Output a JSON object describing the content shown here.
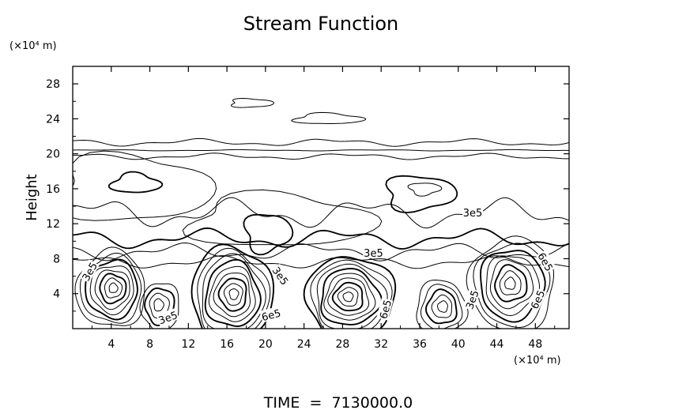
{
  "chart_data": {
    "type": "contour",
    "title": "Stream Function",
    "xlabel": "",
    "ylabel": "Height",
    "x_unit": "(×10⁴ m)",
    "y_unit": "(×10⁴ m)",
    "xlim": [
      0,
      51.5
    ],
    "ylim": [
      0,
      30
    ],
    "xticks": [
      4,
      8,
      12,
      16,
      20,
      24,
      28,
      32,
      36,
      40,
      44,
      48
    ],
    "yticks": [
      4,
      8,
      12,
      16,
      20,
      24,
      28
    ],
    "grid": false,
    "contour_labels": [
      {
        "text": "3e5",
        "x": 1.8,
        "y": 6.5,
        "angle": -60
      },
      {
        "text": "3e5",
        "x": 9.9,
        "y": 1.2,
        "angle": -20
      },
      {
        "text": "3e5",
        "x": 21.5,
        "y": 6.0,
        "angle": 55
      },
      {
        "text": "6e5",
        "x": 20.6,
        "y": 1.5,
        "angle": -15
      },
      {
        "text": "3e5",
        "x": 31.2,
        "y": 8.6,
        "angle": 0
      },
      {
        "text": "6e5",
        "x": 32.5,
        "y": 2.2,
        "angle": -75
      },
      {
        "text": "3e5",
        "x": 41.5,
        "y": 13.2,
        "angle": 0
      },
      {
        "text": "3e5",
        "x": 41.5,
        "y": 3.3,
        "angle": -70
      },
      {
        "text": "6e5",
        "x": 49.0,
        "y": 7.6,
        "angle": 60
      },
      {
        "text": "6e5",
        "x": 48.3,
        "y": 3.3,
        "angle": -65
      }
    ],
    "vortices": [
      {
        "x": 4.0,
        "y": 4.3,
        "rx": 3.6,
        "ry": 4.4,
        "rings": 8
      },
      {
        "x": 9.1,
        "y": 2.4,
        "rx": 2.0,
        "ry": 2.8,
        "rings": 4
      },
      {
        "x": 16.5,
        "y": 3.6,
        "rx": 4.2,
        "ry": 5.6,
        "rings": 9
      },
      {
        "x": 28.8,
        "y": 3.3,
        "rx": 4.6,
        "ry": 4.8,
        "rings": 9
      },
      {
        "x": 38.2,
        "y": 2.2,
        "rx": 2.6,
        "ry": 3.2,
        "rings": 5
      },
      {
        "x": 45.6,
        "y": 4.8,
        "rx": 4.4,
        "ry": 5.4,
        "rings": 8
      }
    ],
    "footer": "TIME  =  7130000.0"
  }
}
